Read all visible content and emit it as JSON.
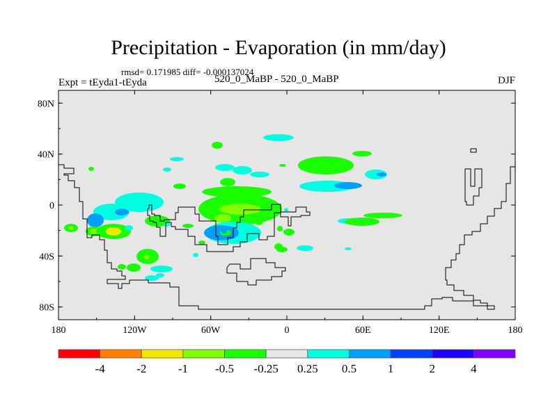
{
  "header": {
    "title": "Precipitation - Evaporation (in mm/day)",
    "stats": "rmsd= 0.171985 diff= -0.000137024",
    "experiment": "Expt = tEyda1-tEyda",
    "comparison": "520_0_MaBP - 520_0_MaBP",
    "season": "DJF"
  },
  "chart_data": {
    "type": "heatmap",
    "title": "Precipitation - Evaporation (in mm/day)",
    "xlabel": "",
    "ylabel": "",
    "xlim": [
      -180,
      180
    ],
    "ylim": [
      -90,
      90
    ],
    "x_ticks": [
      {
        "value": -180,
        "label": "180"
      },
      {
        "value": -120,
        "label": "120W"
      },
      {
        "value": -60,
        "label": "60W"
      },
      {
        "value": 0,
        "label": "0"
      },
      {
        "value": 60,
        "label": "60E"
      },
      {
        "value": 120,
        "label": "120E"
      },
      {
        "value": 180,
        "label": "180"
      }
    ],
    "y_ticks": [
      {
        "value": 80,
        "label": "80N"
      },
      {
        "value": 40,
        "label": "40N"
      },
      {
        "value": 0,
        "label": "0"
      },
      {
        "value": -40,
        "label": "40S"
      },
      {
        "value": -80,
        "label": "80S"
      }
    ],
    "colorbar": {
      "levels": [
        "-4",
        "-2",
        "-1",
        "-0.5",
        "-0.25",
        "0.25",
        "0.5",
        "1",
        "2",
        "4"
      ],
      "colors": [
        "#ff0000",
        "#ff8000",
        "#f0e800",
        "#80ff00",
        "#1aff00",
        "#e6e6e6",
        "#00ffe0",
        "#00a0ff",
        "#0040ff",
        "#2000ff",
        "#8000ff"
      ],
      "placement": "bottom"
    },
    "background_color": "#e6e6e6"
  }
}
